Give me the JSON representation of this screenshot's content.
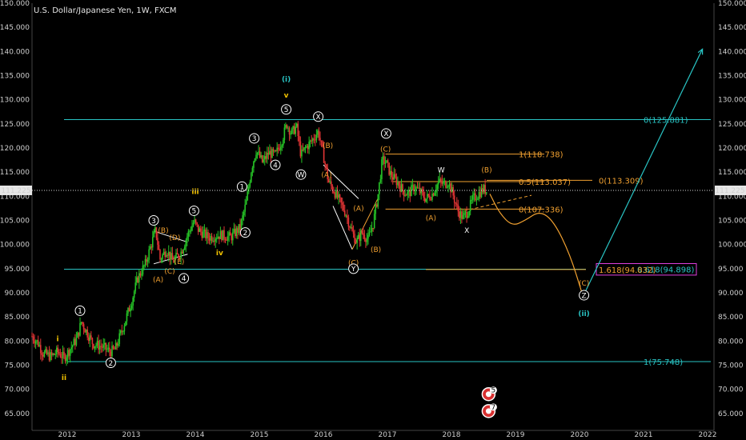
{
  "colors": {
    "background": "#000000",
    "axis_text": "#cfcfcf",
    "up_candle": "#26c426",
    "down_candle": "#e03434",
    "cyan": "#29c4c4",
    "orange": "#f0a030",
    "white": "#ffffff",
    "yellow": "#f2c200",
    "magenta": "#e040e0",
    "current_price_bg": "#e6e6e6"
  },
  "chart_data": {
    "type": "candlestick",
    "title": "U.S. Dollar/Japanese Yen, 1W, FXCM",
    "xlim": [
      2011.45,
      2022.1
    ],
    "ylim": [
      61.5,
      150
    ],
    "x_ticks": [
      2012,
      2013,
      2014,
      2015,
      2016,
      2017,
      2018,
      2019,
      2020,
      2021,
      2022
    ],
    "y_ticks": [
      65,
      70,
      75,
      80,
      85,
      90,
      95,
      100,
      105,
      110,
      115,
      120,
      125,
      130,
      135,
      140,
      145,
      150
    ],
    "y_tick_labels": [
      "65.000",
      "70.000",
      "75.000",
      "80.000",
      "85.000",
      "90.000",
      "95.000",
      "100.000",
      "105.000",
      "110.000",
      "115.000",
      "120.000",
      "125.000",
      "130.000",
      "135.000",
      "140.000",
      "145.000",
      "150.000"
    ],
    "current_price": 111.225,
    "current_price_label": "111.225",
    "price_path": [
      [
        2011.45,
        81.0
      ],
      [
        2011.55,
        79.5
      ],
      [
        2011.62,
        77.5
      ],
      [
        2011.75,
        76.8
      ],
      [
        2011.85,
        77.8
      ],
      [
        2011.95,
        76.5
      ],
      [
        2012.05,
        78.5
      ],
      [
        2012.15,
        80.5
      ],
      [
        2012.22,
        84.0
      ],
      [
        2012.3,
        82.0
      ],
      [
        2012.4,
        79.5
      ],
      [
        2012.55,
        78.8
      ],
      [
        2012.68,
        77.8
      ],
      [
        2012.75,
        78.3
      ],
      [
        2012.85,
        82.0
      ],
      [
        2013.0,
        88.0
      ],
      [
        2013.1,
        93.0
      ],
      [
        2013.22,
        96.0
      ],
      [
        2013.3,
        99.5
      ],
      [
        2013.38,
        103.0
      ],
      [
        2013.45,
        97.0
      ],
      [
        2013.55,
        99.0
      ],
      [
        2013.65,
        96.5
      ],
      [
        2013.78,
        98.5
      ],
      [
        2013.88,
        102.0
      ],
      [
        2013.98,
        104.8
      ],
      [
        2014.05,
        103.0
      ],
      [
        2014.2,
        101.5
      ],
      [
        2014.4,
        102.0
      ],
      [
        2014.55,
        101.5
      ],
      [
        2014.7,
        103.5
      ],
      [
        2014.8,
        109.0
      ],
      [
        2014.88,
        116.0
      ],
      [
        2014.95,
        119.5
      ],
      [
        2015.05,
        117.0
      ],
      [
        2015.15,
        119.0
      ],
      [
        2015.25,
        118.5
      ],
      [
        2015.35,
        121.5
      ],
      [
        2015.43,
        125.0
      ],
      [
        2015.5,
        123.0
      ],
      [
        2015.58,
        124.5
      ],
      [
        2015.65,
        118.5
      ],
      [
        2015.72,
        120.0
      ],
      [
        2015.82,
        121.5
      ],
      [
        2015.92,
        123.5
      ],
      [
        2016.0,
        118.5
      ],
      [
        2016.08,
        113.0
      ],
      [
        2016.15,
        111.5
      ],
      [
        2016.25,
        109.0
      ],
      [
        2016.35,
        106.5
      ],
      [
        2016.45,
        102.5
      ],
      [
        2016.52,
        100.5
      ],
      [
        2016.6,
        102.5
      ],
      [
        2016.7,
        101.0
      ],
      [
        2016.78,
        104.5
      ],
      [
        2016.85,
        110.0
      ],
      [
        2016.92,
        117.5
      ],
      [
        2016.98,
        117.0
      ],
      [
        2017.05,
        114.5
      ],
      [
        2017.15,
        113.0
      ],
      [
        2017.25,
        111.0
      ],
      [
        2017.33,
        110.5
      ],
      [
        2017.42,
        112.0
      ],
      [
        2017.5,
        111.0
      ],
      [
        2017.6,
        109.5
      ],
      [
        2017.7,
        110.5
      ],
      [
        2017.8,
        113.0
      ],
      [
        2017.88,
        112.5
      ],
      [
        2017.95,
        113.0
      ],
      [
        2018.02,
        110.5
      ],
      [
        2018.1,
        107.0
      ],
      [
        2018.18,
        105.5
      ],
      [
        2018.26,
        107.0
      ],
      [
        2018.34,
        109.5
      ],
      [
        2018.42,
        110.5
      ],
      [
        2018.5,
        111.5
      ],
      [
        2018.56,
        111.0
      ]
    ],
    "projection": [
      [
        2018.6,
        110.5
      ],
      [
        2018.75,
        106.5
      ],
      [
        2018.95,
        103.8
      ],
      [
        2019.15,
        105.0
      ],
      [
        2019.38,
        107.0
      ],
      [
        2019.6,
        104.8
      ],
      [
        2019.85,
        98.0
      ],
      [
        2020.05,
        89.5
      ]
    ],
    "arrow": {
      "from": [
        2020.1,
        90.5
      ],
      "to": [
        2021.92,
        140.5
      ]
    },
    "fib_levels": [
      {
        "price": 125.881,
        "label": "0(125.881)",
        "x_start": 2011.95,
        "x_end": 2022.05,
        "label_x": 2021.0,
        "color_key": "cyan"
      },
      {
        "price": 94.898,
        "label": "0.618(94.898)",
        "x_start": 2011.95,
        "x_end": 2020.1,
        "label_x": 2020.9,
        "color_key": "cyan"
      },
      {
        "price": 75.748,
        "label": "1(75.748)",
        "x_start": 2012.0,
        "x_end": 2022.05,
        "label_x": 2021.0,
        "color_key": "cyan"
      },
      {
        "price": 118.738,
        "label": "1(118.738)",
        "x_start": 2016.97,
        "x_end": 2019.45,
        "label_x": 2019.05,
        "color_key": "orange"
      },
      {
        "price": 113.037,
        "label": "0.5(113.037)",
        "x_start": 2017.08,
        "x_end": 2019.45,
        "label_x": 2019.05,
        "color_key": "orange"
      },
      {
        "price": 113.309,
        "label": "0(113.309)",
        "x_start": 2018.55,
        "x_end": 2020.2,
        "label_x": 2020.3,
        "color_key": "orange"
      },
      {
        "price": 107.336,
        "label": "0(107.336)",
        "x_start": 2016.97,
        "x_end": 2019.45,
        "label_x": 2019.05,
        "color_key": "orange"
      },
      {
        "price": 94.832,
        "label": "1.618(94.832)",
        "x_start": 2017.6,
        "x_end": 2020.1,
        "label_x": 2020.3,
        "color_key": "orange"
      }
    ],
    "trendlines": [
      {
        "points": [
          [
            2013.35,
            102.8
          ],
          [
            2013.88,
            100.5
          ]
        ],
        "color_key": "white"
      },
      {
        "points": [
          [
            2013.35,
            96.0
          ],
          [
            2013.88,
            98.0
          ]
        ],
        "color_key": "white"
      },
      {
        "points": [
          [
            2016.0,
            116.5
          ],
          [
            2016.55,
            109.5
          ]
        ],
        "color_key": "white"
      },
      {
        "points": [
          [
            2016.15,
            108.0
          ],
          [
            2016.45,
            99.0
          ]
        ],
        "color_key": "white"
      },
      {
        "points": [
          [
            2016.45,
            99.0
          ],
          [
            2016.85,
            109.5
          ]
        ],
        "color_key": "orange"
      }
    ],
    "dashed_line": {
      "points": [
        [
          2018.2,
          107.0
        ],
        [
          2019.25,
          110.2
        ]
      ],
      "color_key": "orange"
    },
    "wave_labels": [
      {
        "text": "i",
        "x": 2011.85,
        "y": 80.5,
        "color_key": "yellow",
        "style": "plain"
      },
      {
        "text": "ii",
        "x": 2011.95,
        "y": 72.5,
        "color_key": "yellow",
        "style": "plain"
      },
      {
        "text": "1",
        "x": 2012.2,
        "y": 86.3,
        "color_key": "white",
        "style": "circle"
      },
      {
        "text": "2",
        "x": 2012.68,
        "y": 75.5,
        "color_key": "white",
        "style": "circle"
      },
      {
        "text": "3",
        "x": 2013.35,
        "y": 105.0,
        "color_key": "white",
        "style": "circle"
      },
      {
        "text": "4",
        "x": 2013.82,
        "y": 93.0,
        "color_key": "white",
        "style": "circle"
      },
      {
        "text": "5",
        "x": 2013.98,
        "y": 107.0,
        "color_key": "white",
        "style": "circle"
      },
      {
        "text": "(B)",
        "x": 2013.5,
        "y": 103.0,
        "color_key": "orange",
        "style": "plain"
      },
      {
        "text": "(D)",
        "x": 2013.68,
        "y": 101.5,
        "color_key": "orange",
        "style": "plain"
      },
      {
        "text": "(A)",
        "x": 2013.42,
        "y": 92.8,
        "color_key": "orange",
        "style": "plain"
      },
      {
        "text": "(C)",
        "x": 2013.6,
        "y": 94.5,
        "color_key": "orange",
        "style": "plain"
      },
      {
        "text": "(E)",
        "x": 2013.75,
        "y": 96.5,
        "color_key": "orange",
        "style": "plain"
      },
      {
        "text": "iii",
        "x": 2014.0,
        "y": 111.0,
        "color_key": "yellow",
        "style": "plain"
      },
      {
        "text": "iv",
        "x": 2014.38,
        "y": 98.3,
        "color_key": "yellow",
        "style": "plain"
      },
      {
        "text": "1",
        "x": 2014.73,
        "y": 112.0,
        "color_key": "white",
        "style": "circle"
      },
      {
        "text": "2",
        "x": 2014.78,
        "y": 102.5,
        "color_key": "white",
        "style": "circle"
      },
      {
        "text": "3",
        "x": 2014.92,
        "y": 122.0,
        "color_key": "white",
        "style": "circle"
      },
      {
        "text": "4",
        "x": 2015.25,
        "y": 116.5,
        "color_key": "white",
        "style": "circle"
      },
      {
        "text": "5",
        "x": 2015.42,
        "y": 128.0,
        "color_key": "white",
        "style": "circle"
      },
      {
        "text": "v",
        "x": 2015.42,
        "y": 131.0,
        "color_key": "yellow",
        "style": "plain"
      },
      {
        "text": "(i)",
        "x": 2015.42,
        "y": 134.5,
        "color_key": "cyan",
        "style": "bold"
      },
      {
        "text": "W",
        "x": 2015.65,
        "y": 114.5,
        "color_key": "white",
        "style": "circle"
      },
      {
        "text": "X",
        "x": 2015.92,
        "y": 126.5,
        "color_key": "white",
        "style": "circle"
      },
      {
        "text": "(B)",
        "x": 2016.07,
        "y": 120.5,
        "color_key": "orange",
        "style": "plain"
      },
      {
        "text": "(A)",
        "x": 2016.05,
        "y": 114.5,
        "color_key": "orange",
        "style": "plain"
      },
      {
        "text": "(A)",
        "x": 2016.55,
        "y": 107.5,
        "color_key": "orange",
        "style": "plain"
      },
      {
        "text": "(B)",
        "x": 2016.82,
        "y": 99.0,
        "color_key": "orange",
        "style": "plain"
      },
      {
        "text": "(C)",
        "x": 2016.47,
        "y": 96.3,
        "color_key": "orange",
        "style": "plain"
      },
      {
        "text": "Y",
        "x": 2016.47,
        "y": 95.0,
        "color_key": "white",
        "style": "circle"
      },
      {
        "text": "X",
        "x": 2016.98,
        "y": 123.0,
        "color_key": "white",
        "style": "circle"
      },
      {
        "text": "(C)",
        "x": 2016.97,
        "y": 119.8,
        "color_key": "orange",
        "style": "plain"
      },
      {
        "text": "W",
        "x": 2017.84,
        "y": 115.5,
        "color_key": "white",
        "style": "plain"
      },
      {
        "text": "(A)",
        "x": 2017.68,
        "y": 105.5,
        "color_key": "orange",
        "style": "plain"
      },
      {
        "text": "X",
        "x": 2018.24,
        "y": 103.0,
        "color_key": "white",
        "style": "plain"
      },
      {
        "text": "(B)",
        "x": 2018.55,
        "y": 115.5,
        "color_key": "orange",
        "style": "plain"
      },
      {
        "text": "(C)",
        "x": 2020.07,
        "y": 92.0,
        "color_key": "orange",
        "style": "plain"
      },
      {
        "text": "Z",
        "x": 2020.07,
        "y": 89.5,
        "color_key": "white",
        "style": "circle"
      },
      {
        "text": "(ii)",
        "x": 2020.07,
        "y": 86.0,
        "color_key": "cyan",
        "style": "bold"
      }
    ],
    "event_badges": [
      {
        "text": "5",
        "x": 2018.58,
        "y": 69.0
      },
      {
        "text": "7",
        "x": 2018.58,
        "y": 65.5
      }
    ]
  }
}
